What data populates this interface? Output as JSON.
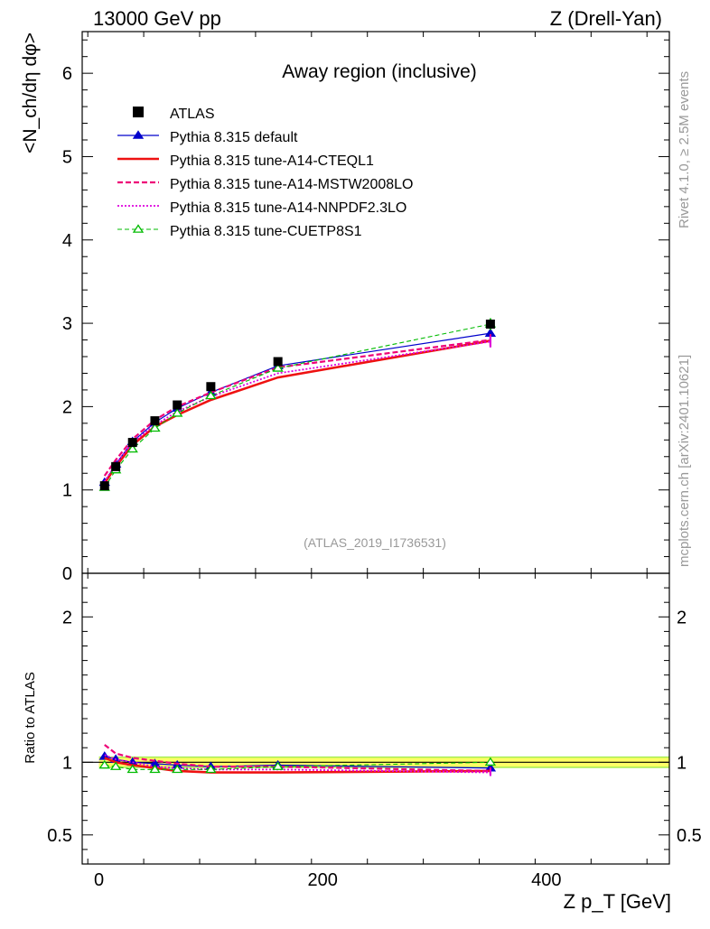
{
  "header": {
    "left": "13000 GeV pp",
    "right": "Z (Drell-Yan)"
  },
  "side_text": {
    "rivet": "Rivet 4.1.0, ≥ 2.5M events",
    "mcplots": "mcplots.cern.ch [arXiv:2401.10621]"
  },
  "chart_data": {
    "type": "line",
    "title": "Away region (inclusive)",
    "analysis_id": "(ATLAS_2019_I1736531)",
    "xlabel": "Z p_T [GeV]",
    "ylabel": "<N_ch/dη dφ>",
    "ratio_ylabel": "Ratio to ATLAS",
    "xlim": [
      -15,
      510
    ],
    "ylim": [
      0,
      6.5
    ],
    "ratio_ylim": [
      0.3,
      2.3
    ],
    "x_ticks": [
      0,
      200,
      400
    ],
    "y_ticks": [
      0,
      1,
      2,
      3,
      4,
      5,
      6
    ],
    "ratio_ticks": [
      0.5,
      1,
      2
    ],
    "x": [
      5,
      15,
      30,
      50,
      70,
      100,
      160,
      350
    ],
    "data": {
      "name": "ATLAS",
      "color": "#000000",
      "values": [
        1.05,
        1.28,
        1.57,
        1.83,
        2.02,
        2.24,
        2.54,
        2.99
      ],
      "errors": [
        0.02,
        0.02,
        0.02,
        0.02,
        0.02,
        0.03,
        0.04,
        0.05
      ]
    },
    "series": [
      {
        "name": "Pythia 8.315 default",
        "color": "#0000cc",
        "dash": "none",
        "width": 1.2,
        "marker": "triangle-filled",
        "values": [
          1.09,
          1.31,
          1.58,
          1.81,
          1.98,
          2.17,
          2.49,
          2.88
        ],
        "ratio": [
          1.04,
          1.02,
          1.0,
          0.99,
          0.98,
          0.97,
          0.98,
          0.96
        ]
      },
      {
        "name": "Pythia 8.315 tune-A14-CTEQL1",
        "color": "#ee1111",
        "dash": "none",
        "width": 2.6,
        "marker": "none",
        "values": [
          1.08,
          1.28,
          1.54,
          1.76,
          1.9,
          2.08,
          2.35,
          2.79
        ],
        "ratio": [
          1.03,
          1.0,
          0.98,
          0.96,
          0.94,
          0.93,
          0.93,
          0.94
        ]
      },
      {
        "name": "Pythia 8.315 tune-A14-MSTW2008LO",
        "color": "#ee0077",
        "dash": "6,3",
        "width": 2.2,
        "marker": "none",
        "values": [
          1.17,
          1.36,
          1.61,
          1.84,
          2.0,
          2.17,
          2.47,
          2.8
        ],
        "ratio": [
          1.12,
          1.06,
          1.03,
          1.01,
          0.99,
          0.97,
          0.97,
          0.94
        ]
      },
      {
        "name": "Pythia 8.315 tune-A14-NNPDF2.3LO",
        "color": "#dd00dd",
        "dash": "2,2",
        "width": 1.8,
        "marker": "none",
        "values": [
          1.1,
          1.31,
          1.57,
          1.78,
          1.94,
          2.12,
          2.4,
          2.78
        ],
        "ratio": [
          1.05,
          1.02,
          1.0,
          0.97,
          0.96,
          0.95,
          0.95,
          0.93
        ]
      },
      {
        "name": "Pythia 8.315 tune-CUETP8S1",
        "color": "#00bb00",
        "dash": "5,3",
        "width": 1.1,
        "marker": "triangle-open",
        "values": [
          1.03,
          1.24,
          1.49,
          1.74,
          1.92,
          2.13,
          2.46,
          2.99
        ],
        "ratio": [
          0.98,
          0.97,
          0.95,
          0.95,
          0.95,
          0.95,
          0.97,
          1.0
        ]
      }
    ],
    "band": {
      "inner_color": "#ffff66",
      "outer_color": "#aaee55"
    }
  }
}
